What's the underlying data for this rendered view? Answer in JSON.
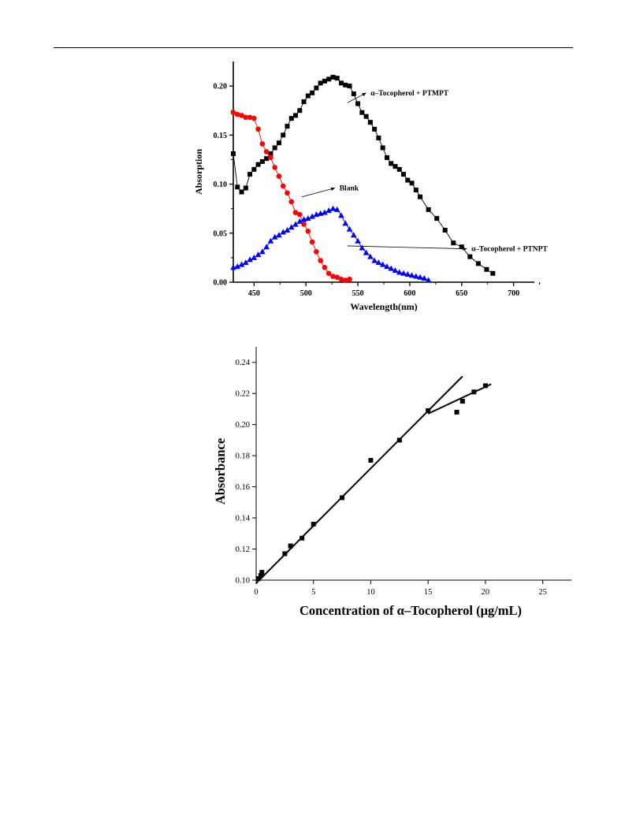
{
  "chart_data": [
    {
      "type": "scatter",
      "title": "",
      "xlabel": "Wavelength(nm)",
      "ylabel": "Absorption",
      "xlim": [
        430,
        720
      ],
      "ylim": [
        0,
        0.225
      ],
      "xticks": [
        "450",
        "500",
        "550",
        "600",
        "650",
        "700"
      ],
      "yticks": [
        "0.00",
        "0.05",
        "0.10",
        "0.15",
        "0.20"
      ],
      "series": [
        {
          "name": "α–Tocopherol + PTMPT",
          "marker": "square",
          "color": "#000000",
          "x": [
            430,
            434,
            438,
            442,
            446,
            450,
            454,
            458,
            462,
            466,
            470,
            474,
            478,
            482,
            486,
            490,
            494,
            498,
            502,
            506,
            510,
            514,
            518,
            522,
            526,
            530,
            534,
            538,
            542,
            546,
            550,
            554,
            558,
            562,
            566,
            570,
            574,
            578,
            582,
            586,
            590,
            594,
            598,
            602,
            606,
            610,
            618,
            626,
            634,
            642,
            650,
            658,
            666,
            674,
            680
          ],
          "y": [
            0.131,
            0.097,
            0.092,
            0.096,
            0.11,
            0.115,
            0.12,
            0.123,
            0.126,
            0.131,
            0.137,
            0.142,
            0.15,
            0.159,
            0.167,
            0.17,
            0.175,
            0.184,
            0.19,
            0.193,
            0.198,
            0.203,
            0.205,
            0.207,
            0.209,
            0.208,
            0.203,
            0.201,
            0.2,
            0.192,
            0.182,
            0.173,
            0.169,
            0.163,
            0.156,
            0.147,
            0.137,
            0.127,
            0.121,
            0.118,
            0.115,
            0.11,
            0.104,
            0.101,
            0.094,
            0.087,
            0.074,
            0.065,
            0.053,
            0.04,
            0.036,
            0.026,
            0.019,
            0.013,
            0.009
          ]
        },
        {
          "name": "Blank",
          "marker": "circle",
          "color": "#ff0000",
          "x": [
            430,
            434,
            438,
            442,
            446,
            450,
            454,
            458,
            462,
            466,
            470,
            474,
            478,
            482,
            486,
            490,
            494,
            498,
            502,
            506,
            510,
            514,
            518,
            522,
            526,
            530,
            534,
            538,
            542
          ],
          "y": [
            0.173,
            0.171,
            0.17,
            0.168,
            0.168,
            0.167,
            0.156,
            0.141,
            0.133,
            0.127,
            0.117,
            0.108,
            0.098,
            0.091,
            0.082,
            0.071,
            0.069,
            0.059,
            0.052,
            0.041,
            0.031,
            0.022,
            0.015,
            0.009,
            0.006,
            0.005,
            0.003,
            0.002,
            0.003
          ]
        },
        {
          "name": "α–Tocopherol + PTNPT",
          "marker": "triangle",
          "color": "#0000ff",
          "x": [
            430,
            434,
            438,
            442,
            446,
            450,
            454,
            458,
            462,
            466,
            470,
            474,
            478,
            482,
            486,
            490,
            494,
            498,
            502,
            506,
            510,
            514,
            518,
            522,
            526,
            530,
            534,
            538,
            542,
            546,
            550,
            554,
            558,
            562,
            566,
            570,
            574,
            578,
            582,
            586,
            590,
            594,
            598,
            602,
            606,
            610,
            614,
            618
          ],
          "y": [
            0.015,
            0.016,
            0.018,
            0.02,
            0.023,
            0.025,
            0.028,
            0.031,
            0.036,
            0.042,
            0.046,
            0.048,
            0.051,
            0.053,
            0.056,
            0.059,
            0.062,
            0.064,
            0.065,
            0.067,
            0.069,
            0.07,
            0.071,
            0.073,
            0.075,
            0.074,
            0.068,
            0.06,
            0.054,
            0.048,
            0.042,
            0.035,
            0.03,
            0.026,
            0.022,
            0.02,
            0.018,
            0.016,
            0.014,
            0.012,
            0.01,
            0.009,
            0.008,
            0.007,
            0.006,
            0.005,
            0.004,
            0.002
          ]
        }
      ],
      "annotations": [
        {
          "text": "α–Tocopherol + PTMPT",
          "x": 560,
          "y": 0.193
        },
        {
          "text": "Blank",
          "x": 530,
          "y": 0.096
        },
        {
          "text": "α–Tocopherol + PTNPT",
          "x": 657,
          "y": 0.034
        }
      ]
    },
    {
      "type": "scatter",
      "title": "",
      "xlabel": "Concentration of α–Tocopherol (μg/mL)",
      "ylabel": "Absorbance",
      "xlim": [
        0,
        27.5
      ],
      "ylim": [
        0.1,
        0.25
      ],
      "xticks": [
        "0",
        "5",
        "10",
        "15",
        "20",
        "25"
      ],
      "yticks": [
        "0.10",
        "0.12",
        "0.14",
        "0.16",
        "0.18",
        "0.20",
        "0.22",
        "0.24"
      ],
      "series": [
        {
          "name": "",
          "marker": "square",
          "color": "#000000",
          "x": [
            0.2,
            0.4,
            0.5,
            2.5,
            3.0,
            4.0,
            5.0,
            7.5,
            10.0,
            12.5,
            15.0,
            17.5,
            18.0,
            19.0,
            20.0
          ],
          "y": [
            0.101,
            0.103,
            0.105,
            0.117,
            0.122,
            0.127,
            0.136,
            0.153,
            0.177,
            0.19,
            0.209,
            0.208,
            0.215,
            0.221,
            0.225
          ]
        }
      ],
      "fit_lines": [
        {
          "x": [
            0,
            18
          ],
          "y": [
            0.098,
            0.231
          ]
        },
        {
          "x": [
            15,
            20.5
          ],
          "y": [
            0.207,
            0.226
          ]
        }
      ]
    }
  ]
}
